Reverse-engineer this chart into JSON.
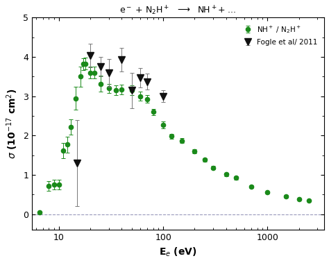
{
  "title": "e$^-$ + N$_2$H$^+$  $\\longrightarrow$  NH$^+$+ ...",
  "xlabel": "E$_e$ (eV)",
  "ylabel": "$\\sigma$ (10$^{-17}$ cm$^2$)",
  "xlim": [
    5.5,
    3500
  ],
  "ylim": [
    -0.4,
    5.0
  ],
  "green_data": {
    "x": [
      6.5,
      8.0,
      9.0,
      10.0,
      11.0,
      12.0,
      13.0,
      14.5,
      16.0,
      17.0,
      18.0,
      20.0,
      22.0,
      25.0,
      30.0,
      35.0,
      40.0,
      50.0,
      60.0,
      70.0,
      80.0,
      100.0,
      120.0,
      150.0,
      200.0,
      250.0,
      300.0,
      400.0,
      500.0,
      700.0,
      1000.0,
      1500.0,
      2000.0,
      2500.0
    ],
    "y": [
      0.05,
      0.72,
      0.75,
      0.75,
      1.62,
      1.77,
      2.22,
      2.95,
      3.5,
      3.82,
      3.83,
      3.6,
      3.6,
      3.32,
      3.2,
      3.15,
      3.17,
      3.15,
      3.0,
      2.93,
      2.6,
      2.27,
      1.98,
      1.87,
      1.6,
      1.38,
      1.18,
      1.01,
      0.92,
      0.7,
      0.55,
      0.45,
      0.38,
      0.35
    ],
    "yerr": [
      0.01,
      0.12,
      0.12,
      0.12,
      0.2,
      0.2,
      0.2,
      0.3,
      0.25,
      0.15,
      0.15,
      0.15,
      0.15,
      0.2,
      0.12,
      0.12,
      0.12,
      0.12,
      0.12,
      0.1,
      0.08,
      0.08,
      0.06,
      0.06,
      0.05,
      0.05,
      0.04,
      0.04,
      0.04,
      0.03,
      0.03,
      0.03,
      0.02,
      0.02
    ]
  },
  "fogle_data": {
    "x": [
      15.0,
      20.0,
      25.0,
      30.0,
      40.0,
      50.0,
      60.0,
      70.0,
      100.0
    ],
    "y": [
      1.3,
      4.04,
      3.75,
      3.6,
      3.93,
      3.15,
      3.47,
      3.37,
      3.0
    ],
    "yerr": [
      1.1,
      0.3,
      0.25,
      0.35,
      0.3,
      0.45,
      0.25,
      0.2,
      0.15
    ]
  },
  "green_color": "#1a8a1a",
  "black_color": "#111111",
  "dashed_line_color": "#9999bb",
  "background_color": "#ffffff"
}
